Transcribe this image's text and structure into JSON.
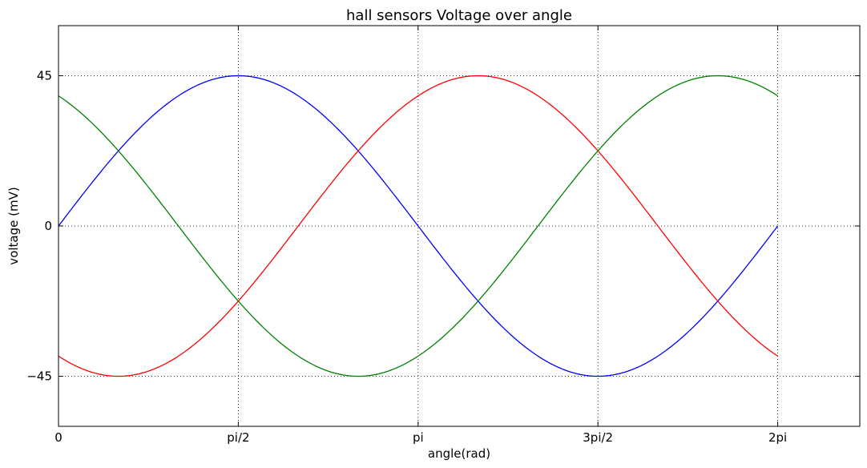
{
  "chart_data": {
    "type": "line",
    "title": "hall sensors Voltage over angle",
    "xlabel": "angle(rad)",
    "ylabel": "voltage (mV)",
    "xlim": [
      0,
      7.0
    ],
    "ylim": [
      -60,
      60
    ],
    "xticks": [
      {
        "value": 0,
        "label": "0"
      },
      {
        "value": 1.5708,
        "label": "pi/2"
      },
      {
        "value": 3.1416,
        "label": "pi"
      },
      {
        "value": 4.7124,
        "label": "3pi/2"
      },
      {
        "value": 6.2832,
        "label": "2pi"
      }
    ],
    "yticks": [
      {
        "value": 45,
        "label": "45"
      },
      {
        "value": 0,
        "label": "0"
      },
      {
        "value": -45,
        "label": "−45"
      }
    ],
    "grid": true,
    "legend": "none",
    "series": [
      {
        "color": "#0000ff",
        "amplitude": 45,
        "phase_rad": 0,
        "x_start": 0,
        "x_end": 6.2832
      },
      {
        "color": "#ff0000",
        "amplitude": 45,
        "phase_rad": -2.0944,
        "x_start": 0,
        "x_end": 6.2832
      },
      {
        "color": "#008000",
        "amplitude": 45,
        "phase_rad": 2.0944,
        "x_start": 0,
        "x_end": 6.2832
      }
    ]
  }
}
